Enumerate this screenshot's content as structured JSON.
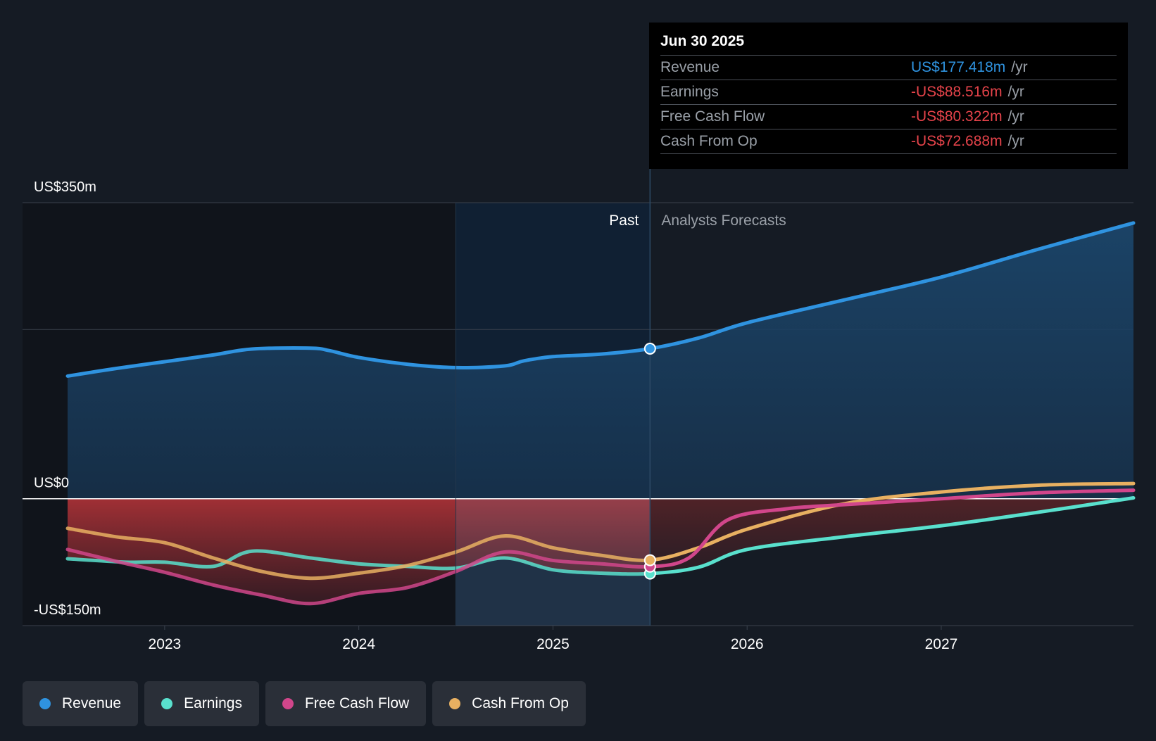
{
  "chart_data": {
    "type": "line",
    "y_axis": {
      "unit": "US$m",
      "ylim": [
        -150,
        350
      ],
      "tick_labels": [
        "US$350m",
        "US$0",
        "-US$150m"
      ]
    },
    "x_axis": {
      "ticks": [
        2023,
        2024,
        2025,
        2026,
        2027
      ],
      "xlim": [
        2022.5,
        2027.99
      ]
    },
    "regions": {
      "past_label": "Past",
      "forecast_label": "Analysts Forecasts",
      "divider_x": 2025.5,
      "highlight_start_x": 2024.5
    },
    "series": [
      {
        "name": "Revenue",
        "color": "#2f93e0",
        "points": [
          [
            2022.5,
            145
          ],
          [
            2022.75,
            154
          ],
          [
            2023.0,
            162
          ],
          [
            2023.25,
            170
          ],
          [
            2023.45,
            177
          ],
          [
            2023.75,
            178
          ],
          [
            2023.85,
            175
          ],
          [
            2024.0,
            167
          ],
          [
            2024.25,
            159
          ],
          [
            2024.5,
            155
          ],
          [
            2024.75,
            157
          ],
          [
            2024.85,
            163
          ],
          [
            2025.0,
            168
          ],
          [
            2025.25,
            171
          ],
          [
            2025.5,
            177.418
          ],
          [
            2025.75,
            190
          ],
          [
            2026.0,
            208
          ],
          [
            2026.5,
            235
          ],
          [
            2027.0,
            262
          ],
          [
            2027.5,
            295
          ],
          [
            2027.99,
            326
          ]
        ]
      },
      {
        "name": "Earnings",
        "color": "#59e0cd",
        "points": [
          [
            2022.5,
            -71
          ],
          [
            2022.8,
            -75
          ],
          [
            2023.0,
            -75
          ],
          [
            2023.25,
            -80
          ],
          [
            2023.45,
            -62
          ],
          [
            2023.75,
            -70
          ],
          [
            2024.0,
            -77
          ],
          [
            2024.25,
            -80
          ],
          [
            2024.5,
            -82
          ],
          [
            2024.75,
            -70
          ],
          [
            2025.0,
            -84
          ],
          [
            2025.25,
            -88
          ],
          [
            2025.5,
            -88.516
          ],
          [
            2025.75,
            -81
          ],
          [
            2026.0,
            -60
          ],
          [
            2026.5,
            -45
          ],
          [
            2027.0,
            -32
          ],
          [
            2027.5,
            -16
          ],
          [
            2027.99,
            1
          ]
        ]
      },
      {
        "name": "Free Cash Flow",
        "color": "#d1468b",
        "points": [
          [
            2022.5,
            -60
          ],
          [
            2022.75,
            -74
          ],
          [
            2023.0,
            -87
          ],
          [
            2023.25,
            -102
          ],
          [
            2023.5,
            -114
          ],
          [
            2023.75,
            -124
          ],
          [
            2024.0,
            -112
          ],
          [
            2024.25,
            -105
          ],
          [
            2024.5,
            -86
          ],
          [
            2024.75,
            -63
          ],
          [
            2025.0,
            -73
          ],
          [
            2025.25,
            -77
          ],
          [
            2025.5,
            -80.322
          ],
          [
            2025.7,
            -70
          ],
          [
            2025.9,
            -25
          ],
          [
            2026.2,
            -12
          ],
          [
            2026.5,
            -7
          ],
          [
            2027.0,
            0
          ],
          [
            2027.5,
            7
          ],
          [
            2027.99,
            10
          ]
        ]
      },
      {
        "name": "Cash From Op",
        "color": "#e8b061",
        "points": [
          [
            2022.5,
            -35
          ],
          [
            2022.75,
            -45
          ],
          [
            2023.0,
            -52
          ],
          [
            2023.25,
            -70
          ],
          [
            2023.5,
            -86
          ],
          [
            2023.75,
            -94
          ],
          [
            2024.0,
            -88
          ],
          [
            2024.25,
            -79
          ],
          [
            2024.5,
            -63
          ],
          [
            2024.75,
            -44
          ],
          [
            2025.0,
            -58
          ],
          [
            2025.25,
            -67
          ],
          [
            2025.5,
            -72.688
          ],
          [
            2025.75,
            -58
          ],
          [
            2026.0,
            -36
          ],
          [
            2026.5,
            -6
          ],
          [
            2027.0,
            8
          ],
          [
            2027.5,
            16
          ],
          [
            2027.99,
            18
          ]
        ]
      }
    ]
  },
  "tooltip": {
    "date": "Jun 30 2025",
    "rows": [
      {
        "label": "Revenue",
        "value": "US$177.418m",
        "unit": "/yr",
        "color": "#2f93e0"
      },
      {
        "label": "Earnings",
        "value": "-US$88.516m",
        "unit": "/yr",
        "color": "#e5434a"
      },
      {
        "label": "Free Cash Flow",
        "value": "-US$80.322m",
        "unit": "/yr",
        "color": "#e5434a"
      },
      {
        "label": "Cash From Op",
        "value": "-US$72.688m",
        "unit": "/yr",
        "color": "#e5434a"
      }
    ]
  },
  "legend": [
    {
      "label": "Revenue",
      "color": "#2f93e0"
    },
    {
      "label": "Earnings",
      "color": "#59e0cd"
    },
    {
      "label": "Free Cash Flow",
      "color": "#d1468b"
    },
    {
      "label": "Cash From Op",
      "color": "#e8b061"
    }
  ]
}
